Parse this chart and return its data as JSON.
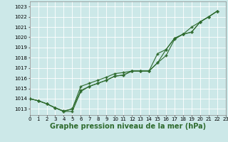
{
  "background_color": "#cce8e8",
  "grid_color": "#b8d8d8",
  "line_color": "#2d6a2d",
  "xlabel": "Graphe pression niveau de la mer (hPa)",
  "xlabel_fontsize": 7,
  "ylabel_ticks": [
    1013,
    1014,
    1015,
    1016,
    1017,
    1018,
    1019,
    1020,
    1021,
    1022,
    1023
  ],
  "xlim": [
    0,
    23
  ],
  "ylim": [
    1012.4,
    1023.5
  ],
  "series1": [
    1014.0,
    1013.8,
    1013.5,
    1013.1,
    1012.8,
    1013.0,
    1015.2,
    1015.5,
    1015.8,
    1016.1,
    1016.45,
    1016.55,
    1016.7,
    1016.7,
    1016.7,
    1018.4,
    1018.8,
    1019.9,
    1020.3,
    1021.0,
    1021.5,
    1022.0,
    1022.55
  ],
  "series2": [
    1014.0,
    1013.8,
    1013.5,
    1013.1,
    1012.75,
    1012.75,
    1014.7,
    1015.2,
    1015.5,
    1015.8,
    1016.2,
    1016.3,
    1016.7,
    1016.7,
    1016.7,
    1017.5,
    1018.8,
    1019.9,
    1020.3,
    1020.5,
    1021.5,
    1022.0,
    1022.55
  ],
  "series3": [
    1014.0,
    1013.8,
    1013.5,
    1013.1,
    1012.75,
    1013.0,
    1014.8,
    1015.2,
    1015.5,
    1015.8,
    1016.2,
    1016.3,
    1016.7,
    1016.7,
    1016.7,
    1017.5,
    1018.2,
    1019.8,
    1020.3,
    1020.5,
    1021.5,
    1022.0,
    1022.55
  ],
  "marker": "+",
  "marker_size": 3,
  "line_width": 0.8,
  "tick_fontsize": 5,
  "xtick_fontsize": 5
}
